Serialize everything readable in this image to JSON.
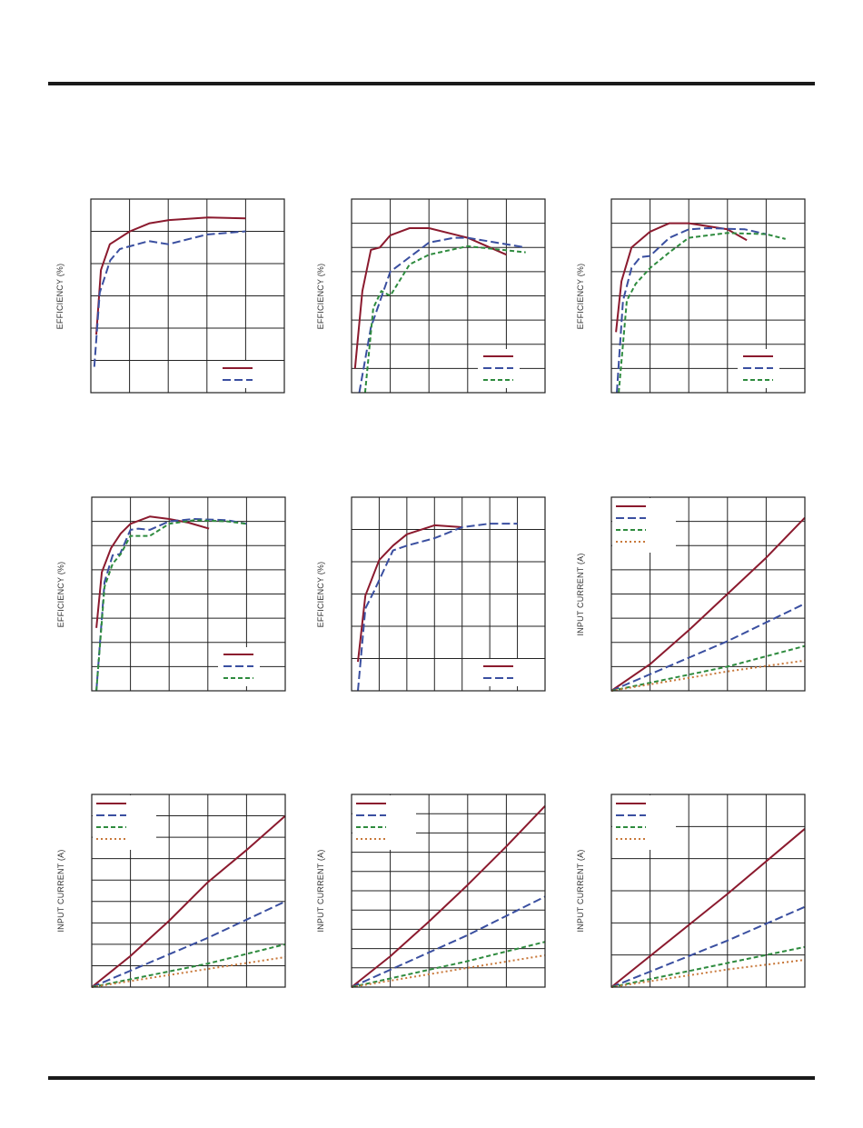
{
  "colors": {
    "red": "#8b1a2e",
    "blue": "#3a4fa0",
    "green": "#2e8b3e",
    "orange": "#c8783a",
    "rule": "#1a1a1a"
  },
  "chart_data": [
    {
      "type": "line",
      "ylabel": "EFFICIENCY (%)",
      "grid": {
        "cols": 5,
        "rows": 6
      },
      "legend": "bottom-right",
      "series": [
        {
          "color": "red",
          "style": "solid",
          "x": [
            0.14,
            0.26,
            0.49,
            1.01,
            1.52,
            2.02,
            3.03,
            4.0
          ],
          "y": [
            1.8,
            3.8,
            4.6,
            5.0,
            5.25,
            5.35,
            5.43,
            5.4
          ]
        },
        {
          "color": "blue",
          "style": "longdash",
          "x": [
            0.09,
            0.23,
            0.5,
            0.75,
            1.5,
            2.0,
            3.0,
            4.0
          ],
          "y": [
            0.8,
            3.1,
            4.1,
            4.45,
            4.7,
            4.6,
            4.9,
            5.0
          ]
        }
      ]
    },
    {
      "type": "line",
      "ylabel": "EFFICIENCY (%)",
      "grid": {
        "cols": 5,
        "rows": 8
      },
      "legend": "bottom-right",
      "series": [
        {
          "color": "red",
          "style": "solid",
          "x": [
            0.09,
            0.28,
            0.5,
            0.73,
            1.0,
            1.5,
            2.0,
            3.0,
            4.0
          ],
          "y": [
            1.0,
            4.2,
            5.9,
            6.0,
            6.5,
            6.8,
            6.8,
            6.4,
            5.7
          ]
        },
        {
          "color": "blue",
          "style": "longdash",
          "x": [
            0.2,
            0.5,
            1.0,
            2.0,
            2.65,
            3.0,
            4.5
          ],
          "y": [
            0,
            2.7,
            5.0,
            6.2,
            6.4,
            6.4,
            6.0
          ]
        },
        {
          "color": "green",
          "style": "shortdash",
          "x": [
            0.35,
            0.56,
            0.77,
            1.0,
            1.5,
            2.0,
            3.0,
            4.5
          ],
          "y": [
            0,
            3.5,
            4.2,
            4.0,
            5.3,
            5.7,
            6.05,
            5.8
          ]
        }
      ]
    },
    {
      "type": "line",
      "ylabel": "EFFICIENCY (%)",
      "grid": {
        "cols": 5,
        "rows": 8
      },
      "legend": "bottom-right",
      "series": [
        {
          "color": "red",
          "style": "solid",
          "x": [
            0.12,
            0.26,
            0.52,
            1.0,
            1.5,
            2.0,
            3.0,
            3.5
          ],
          "y": [
            2.5,
            4.6,
            6.0,
            6.65,
            7.0,
            7.0,
            6.75,
            6.3
          ]
        },
        {
          "color": "blue",
          "style": "longdash",
          "x": [
            0.14,
            0.3,
            0.52,
            0.75,
            1.0,
            1.5,
            2.0,
            2.5,
            3.45,
            4.0
          ],
          "y": [
            0,
            3.8,
            5.15,
            5.6,
            5.65,
            6.4,
            6.75,
            6.8,
            6.75,
            6.55
          ]
        },
        {
          "color": "green",
          "style": "shortdash",
          "x": [
            0.19,
            0.4,
            0.63,
            1.0,
            1.5,
            2.0,
            3.0,
            4.0,
            4.5
          ],
          "y": [
            0,
            3.8,
            4.5,
            5.15,
            5.8,
            6.4,
            6.6,
            6.55,
            6.35
          ]
        }
      ]
    },
    {
      "type": "line",
      "ylabel": "EFFICIENCY (%)",
      "grid": {
        "cols": 5,
        "rows": 8
      },
      "legend": "bottom-right",
      "series": [
        {
          "color": "red",
          "style": "solid",
          "x": [
            0.12,
            0.26,
            0.5,
            0.75,
            1.0,
            1.5,
            2.0,
            2.5,
            3.03
          ],
          "y": [
            2.6,
            4.9,
            5.9,
            6.5,
            6.9,
            7.2,
            7.1,
            6.95,
            6.7
          ]
        },
        {
          "color": "blue",
          "style": "longdash",
          "x": [
            0.12,
            0.33,
            0.54,
            0.73,
            1.0,
            1.2,
            1.5,
            2.0,
            2.65,
            3.5,
            4.0
          ],
          "y": [
            0,
            4.5,
            5.6,
            5.65,
            6.65,
            6.7,
            6.65,
            7.0,
            7.1,
            7.05,
            6.9
          ]
        },
        {
          "color": "green",
          "style": "shortdash",
          "x": [
            0.12,
            0.33,
            0.54,
            0.75,
            1.0,
            1.5,
            2.0,
            2.65,
            3.5,
            4.0
          ],
          "y": [
            0,
            4.3,
            5.25,
            5.65,
            6.4,
            6.4,
            6.9,
            7.05,
            7.0,
            6.9
          ]
        }
      ]
    },
    {
      "type": "line",
      "ylabel": "EFFICIENCY (%)",
      "grid": {
        "cols": 7,
        "rows": 6
      },
      "legend": "bottom-right",
      "series": [
        {
          "color": "red",
          "style": "solid",
          "x": [
            0.23,
            0.5,
            1.0,
            1.5,
            2.0,
            3.0,
            4.0
          ],
          "y": [
            0.9,
            2.95,
            4.05,
            4.5,
            4.85,
            5.13,
            5.07
          ]
        },
        {
          "color": "blue",
          "style": "longdash",
          "x": [
            0.23,
            0.5,
            0.82,
            1.5,
            2.0,
            3.0,
            4.0,
            5.0,
            6.0
          ],
          "y": [
            0,
            2.55,
            3.1,
            4.35,
            4.5,
            4.73,
            5.07,
            5.18,
            5.18
          ]
        }
      ]
    },
    {
      "type": "line",
      "ylabel": "INPUT CURRENT (A)",
      "grid": {
        "cols": 5,
        "rows": 8
      },
      "legend": "top-left",
      "series": [
        {
          "color": "red",
          "style": "solid",
          "x": [
            0,
            1,
            2,
            3,
            4,
            5
          ],
          "y": [
            0,
            1.1,
            2.5,
            4.0,
            5.5,
            7.15
          ]
        },
        {
          "color": "blue",
          "style": "longdash",
          "x": [
            0,
            3,
            5
          ],
          "y": [
            0,
            2.05,
            3.6
          ]
        },
        {
          "color": "green",
          "style": "shortdash",
          "x": [
            0,
            3,
            5
          ],
          "y": [
            0,
            1.0,
            1.85
          ]
        },
        {
          "color": "orange",
          "style": "dotted",
          "x": [
            0,
            3,
            5
          ],
          "y": [
            0,
            0.8,
            1.25
          ]
        }
      ]
    },
    {
      "type": "line",
      "ylabel": "INPUT CURRENT (A)",
      "grid": {
        "cols": 5,
        "rows": 9
      },
      "legend": "top-left",
      "series": [
        {
          "color": "red",
          "style": "solid",
          "x": [
            0,
            1,
            2,
            3,
            4,
            5
          ],
          "y": [
            0,
            1.45,
            3.1,
            4.9,
            6.4,
            8.0
          ]
        },
        {
          "color": "blue",
          "style": "longdash",
          "x": [
            0,
            3,
            5
          ],
          "y": [
            0,
            2.3,
            4.0
          ]
        },
        {
          "color": "green",
          "style": "shortdash",
          "x": [
            0,
            3,
            5
          ],
          "y": [
            0,
            1.1,
            2.0
          ]
        },
        {
          "color": "orange",
          "style": "dotted",
          "x": [
            0,
            3,
            5
          ],
          "y": [
            0,
            0.85,
            1.4
          ]
        }
      ]
    },
    {
      "type": "line",
      "ylabel": "INPUT CURRENT (A)",
      "grid": {
        "cols": 5,
        "rows": 10
      },
      "legend": "top-left",
      "series": [
        {
          "color": "red",
          "style": "solid",
          "x": [
            0,
            1,
            2,
            3,
            4,
            5
          ],
          "y": [
            0,
            1.6,
            3.4,
            5.3,
            7.3,
            9.4
          ]
        },
        {
          "color": "blue",
          "style": "longdash",
          "x": [
            0,
            3,
            5
          ],
          "y": [
            0,
            2.7,
            4.7
          ]
        },
        {
          "color": "green",
          "style": "shortdash",
          "x": [
            0,
            3,
            5
          ],
          "y": [
            0,
            1.35,
            2.35
          ]
        },
        {
          "color": "orange",
          "style": "dotted",
          "x": [
            0,
            3,
            5
          ],
          "y": [
            0,
            1.0,
            1.65
          ]
        }
      ]
    },
    {
      "type": "line",
      "ylabel": "INPUT CURRENT (A)",
      "grid": {
        "cols": 5,
        "rows": 6
      },
      "legend": "top-left",
      "series": [
        {
          "color": "red",
          "style": "solid",
          "x": [
            0,
            3,
            5
          ],
          "y": [
            0,
            2.9,
            4.93
          ]
        },
        {
          "color": "blue",
          "style": "longdash",
          "x": [
            0,
            3,
            5
          ],
          "y": [
            0,
            1.45,
            2.5
          ]
        },
        {
          "color": "green",
          "style": "shortdash",
          "x": [
            0,
            3,
            5
          ],
          "y": [
            0,
            0.75,
            1.25
          ]
        },
        {
          "color": "orange",
          "style": "dotted",
          "x": [
            0,
            3,
            5
          ],
          "y": [
            0,
            0.55,
            0.85
          ]
        }
      ]
    }
  ]
}
